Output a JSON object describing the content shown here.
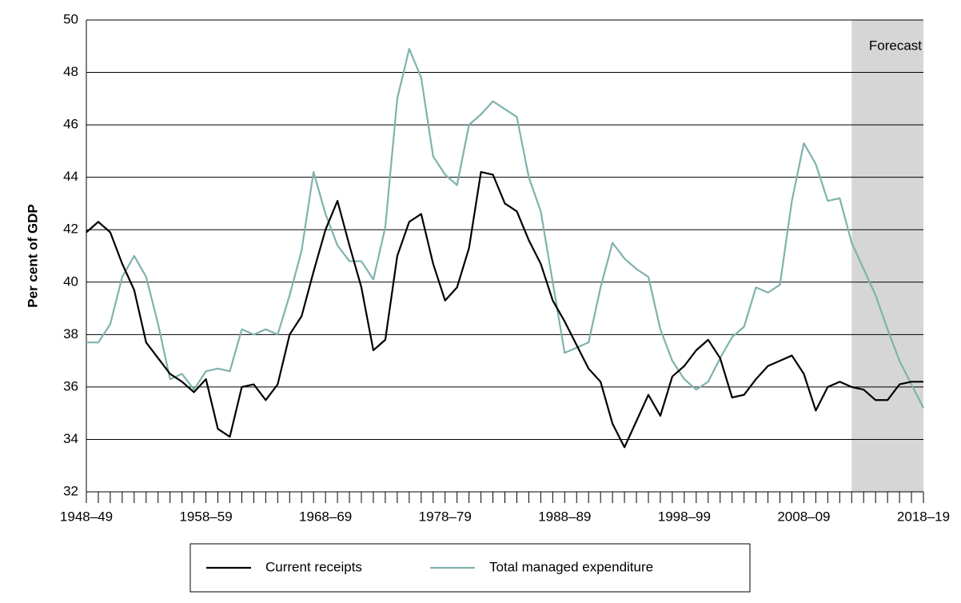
{
  "chart_data": {
    "type": "line",
    "y_label": "Per cent of GDP",
    "categories": [
      "1948–49",
      null,
      null,
      null,
      null,
      null,
      null,
      null,
      null,
      null,
      "1958–59",
      null,
      null,
      null,
      null,
      null,
      null,
      null,
      null,
      null,
      "1968–69",
      null,
      null,
      null,
      null,
      null,
      null,
      null,
      null,
      null,
      "1978–79",
      null,
      null,
      null,
      null,
      null,
      null,
      null,
      null,
      null,
      "1988–89",
      null,
      null,
      null,
      null,
      null,
      null,
      null,
      null,
      null,
      "1998–99",
      null,
      null,
      null,
      null,
      null,
      null,
      null,
      null,
      null,
      "2008–09",
      null,
      null,
      null,
      null,
      null,
      null,
      null,
      null,
      null,
      "2018–19"
    ],
    "series": [
      {
        "name": "Current receipts",
        "color": "#000000",
        "values": [
          41.9,
          42.3,
          41.9,
          40.7,
          39.7,
          37.7,
          37.1,
          36.5,
          36.2,
          35.8,
          36.3,
          34.4,
          34.1,
          36.0,
          36.1,
          35.5,
          36.1,
          38.0,
          38.7,
          40.4,
          42.0,
          43.1,
          41.4,
          39.8,
          37.4,
          37.8,
          41.0,
          42.3,
          42.6,
          40.7,
          39.3,
          39.8,
          41.3,
          44.2,
          44.1,
          43.0,
          42.7,
          41.6,
          40.7,
          39.3,
          38.5,
          37.6,
          36.7,
          36.2,
          34.6,
          33.7,
          34.7,
          35.7,
          34.9,
          36.4,
          36.8,
          37.4,
          37.8,
          37.1,
          35.6,
          35.7,
          36.3,
          36.8,
          37.0,
          37.2,
          36.5,
          35.1,
          36.0,
          36.2,
          36.0,
          35.9,
          35.5,
          35.5,
          36.1,
          36.2,
          36.2
        ]
      },
      {
        "name": "Total managed expenditure",
        "color": "#7fb2ae",
        "values": [
          37.7,
          37.7,
          38.4,
          40.2,
          41.0,
          40.2,
          38.4,
          36.3,
          36.5,
          35.9,
          36.6,
          36.7,
          36.6,
          38.2,
          38.0,
          38.2,
          38.0,
          39.5,
          41.2,
          44.2,
          42.6,
          41.4,
          40.8,
          40.8,
          40.1,
          42.1,
          47.0,
          48.9,
          47.8,
          44.8,
          44.1,
          43.7,
          46.0,
          46.4,
          46.9,
          46.6,
          46.3,
          44.0,
          42.7,
          40.0,
          37.3,
          37.5,
          37.7,
          39.8,
          41.5,
          40.9,
          40.5,
          40.2,
          38.2,
          37.0,
          36.3,
          35.9,
          36.2,
          37.1,
          37.9,
          38.3,
          39.8,
          39.6,
          39.9,
          43.1,
          45.3,
          44.5,
          43.1,
          43.2,
          41.5,
          40.5,
          39.5,
          38.2,
          37.0,
          36.1,
          35.2
        ]
      }
    ],
    "forecast": {
      "label": "Forecast",
      "start": 64
    },
    "ylim": [
      32,
      50
    ],
    "yticks": [
      32,
      34,
      36,
      38,
      40,
      42,
      44,
      46,
      48,
      50
    ],
    "grid": true,
    "legend": "bottom"
  }
}
